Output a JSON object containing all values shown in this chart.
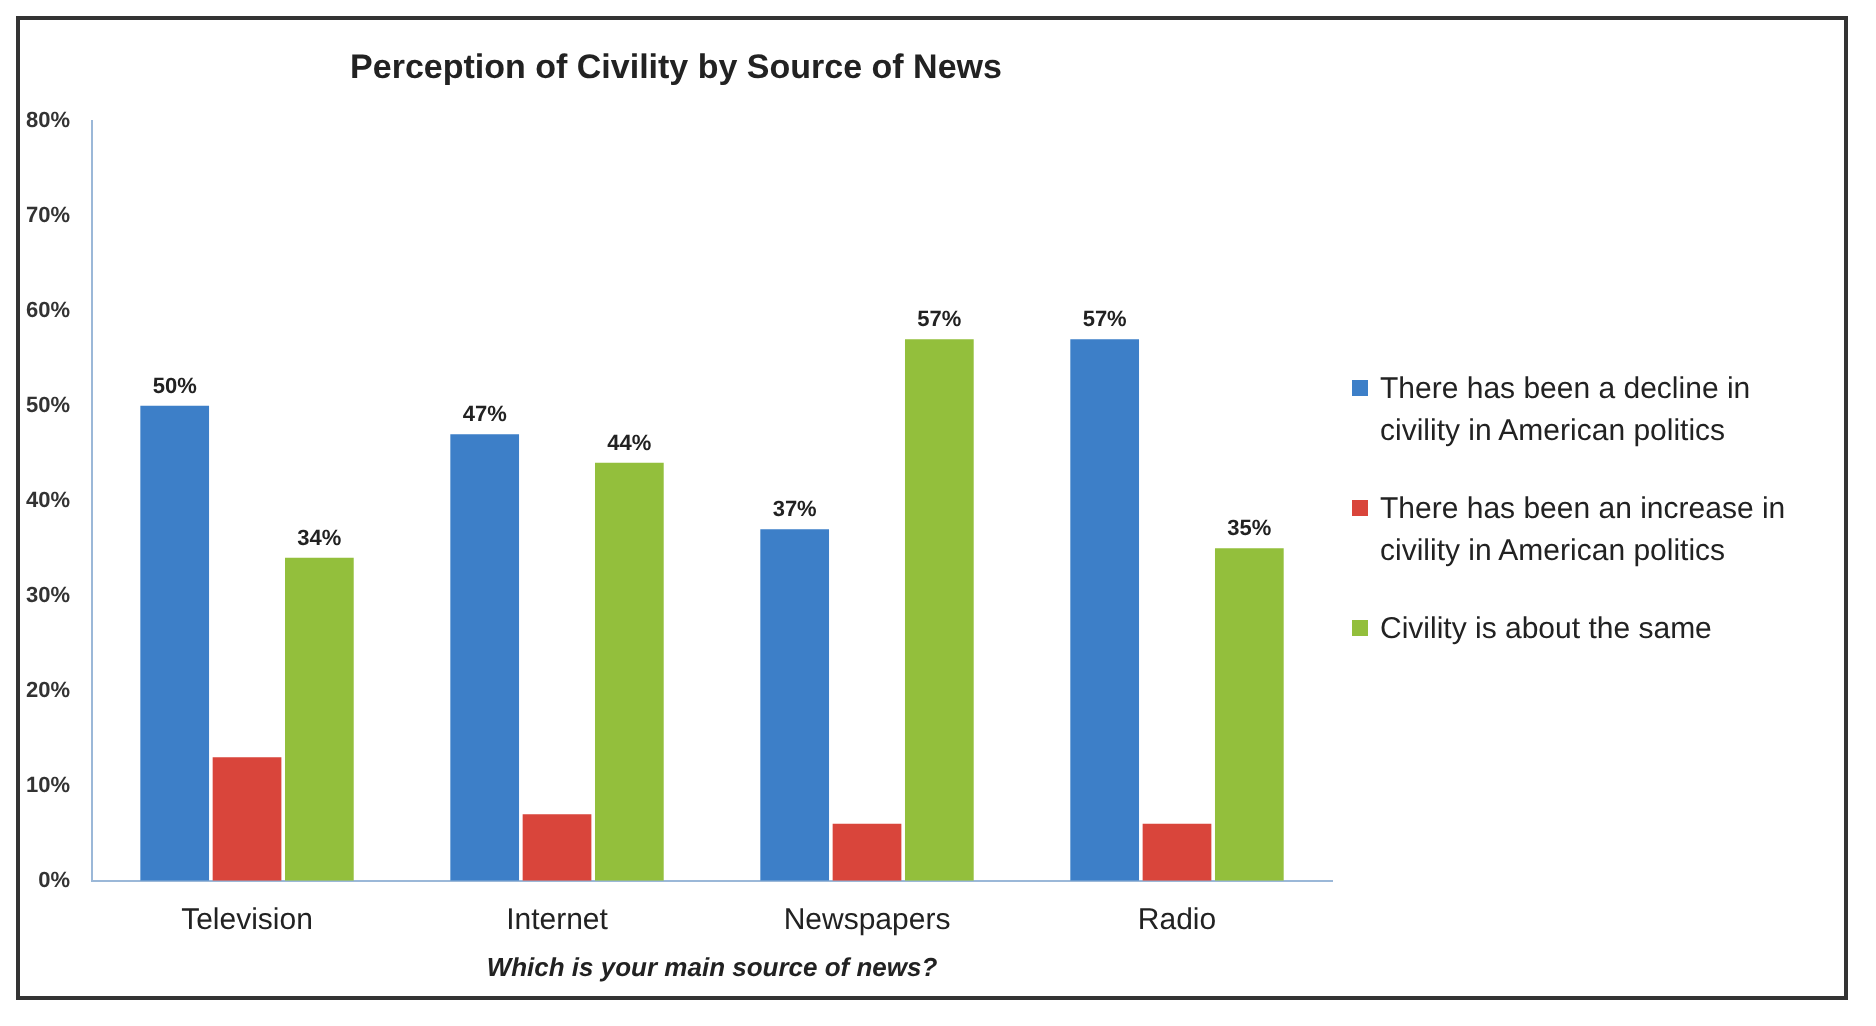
{
  "chart_data": {
    "type": "bar",
    "title": "Perception of Civility by Source of News",
    "xlabel": "Which is your main source of news?",
    "categories": [
      "Television",
      "Internet",
      "Newspapers",
      "Radio"
    ],
    "series": [
      {
        "name": "There has been a decline in civility in American politics",
        "color": "#3d7fc8",
        "values": [
          50,
          47,
          37,
          57
        ],
        "value_labels": [
          "50%",
          "47%",
          "37%",
          "57%"
        ]
      },
      {
        "name": "There has been an increase in civility in American politics",
        "color": "#d9453b",
        "values": [
          13,
          7,
          6,
          6
        ]
      },
      {
        "name": "Civility is about the same",
        "color": "#93bf3c",
        "values": [
          34,
          44,
          57,
          35
        ],
        "value_labels": [
          "34%",
          "44%",
          "57%",
          "35%"
        ]
      }
    ],
    "ylim": [
      0,
      80
    ],
    "yticks": [
      {
        "value": 0,
        "label": "0%"
      },
      {
        "value": 10,
        "label": "10%"
      },
      {
        "value": 20,
        "label": "20%"
      },
      {
        "value": 30,
        "label": "30%"
      },
      {
        "value": 40,
        "label": "40%"
      },
      {
        "value": 50,
        "label": "50%"
      },
      {
        "value": 60,
        "label": "60%"
      },
      {
        "value": 70,
        "label": "70%"
      },
      {
        "value": 80,
        "label": "80%"
      }
    ],
    "grid": false,
    "legend": "right"
  }
}
